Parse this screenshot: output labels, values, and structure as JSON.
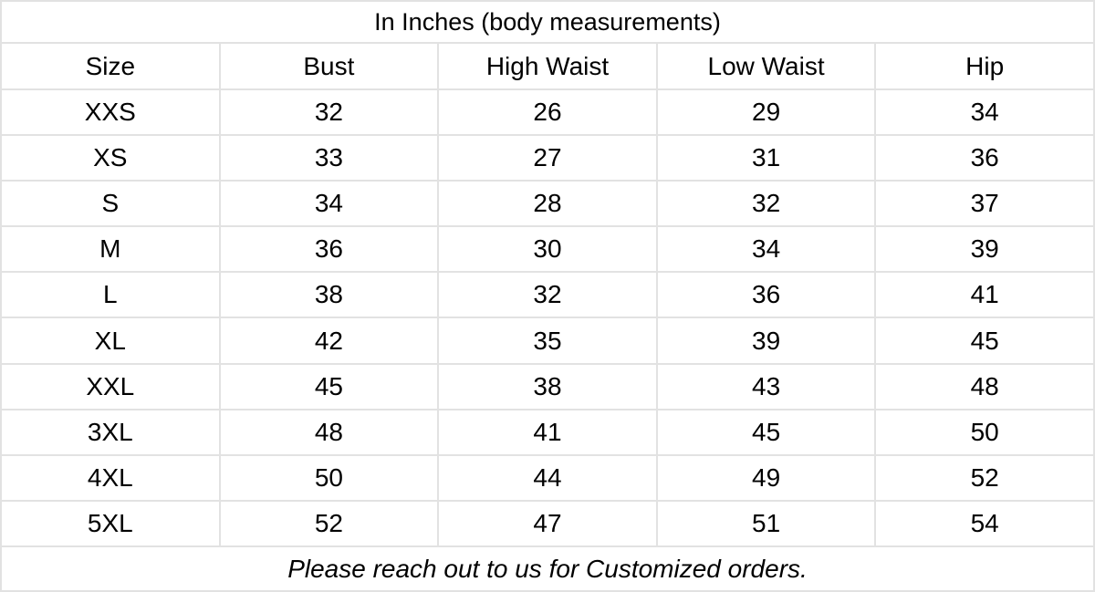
{
  "colors": {
    "background": "#ffffff",
    "border": "#e2e2e2",
    "text": "#000000"
  },
  "chart_data": {
    "type": "table",
    "title": "In Inches (body measurements)",
    "columns": [
      "Size",
      "Bust",
      "High Waist",
      "Low Waist",
      "Hip"
    ],
    "rows": [
      [
        "XXS",
        "32",
        "26",
        "29",
        "34"
      ],
      [
        "XS",
        "33",
        "27",
        "31",
        "36"
      ],
      [
        "S",
        "34",
        "28",
        "32",
        "37"
      ],
      [
        "M",
        "36",
        "30",
        "34",
        "39"
      ],
      [
        "L",
        "38",
        "32",
        "36",
        "41"
      ],
      [
        "XL",
        "42",
        "35",
        "39",
        "45"
      ],
      [
        "XXL",
        "45",
        "38",
        "43",
        "48"
      ],
      [
        "3XL",
        "48",
        "41",
        "45",
        "50"
      ],
      [
        "4XL",
        "50",
        "44",
        "49",
        "52"
      ],
      [
        "5XL",
        "52",
        "47",
        "51",
        "54"
      ]
    ],
    "note": "Please reach out to us for Customized orders.",
    "layout": {
      "grid": "on",
      "column_count": 5,
      "row_count": 10,
      "text_align": "center"
    }
  }
}
